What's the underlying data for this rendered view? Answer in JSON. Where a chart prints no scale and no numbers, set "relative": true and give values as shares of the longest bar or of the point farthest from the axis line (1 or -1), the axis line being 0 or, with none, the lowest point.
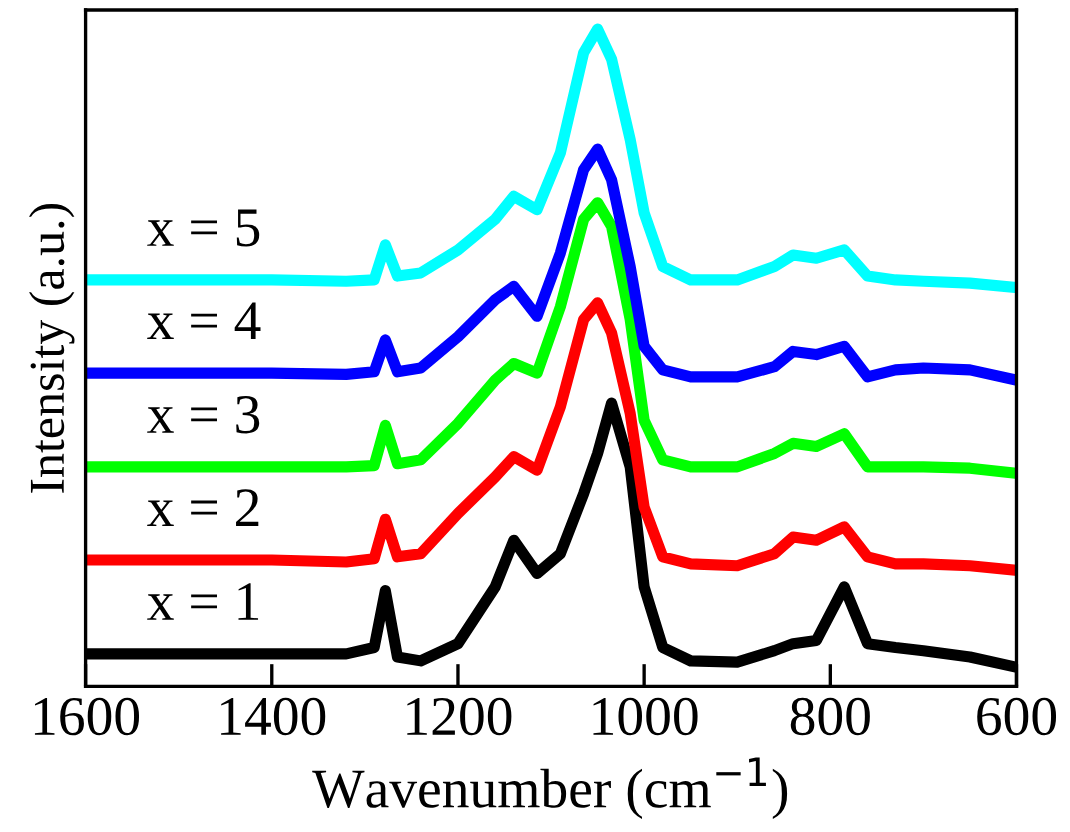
{
  "chart_data": {
    "type": "line",
    "relative": true,
    "xlabel": "Wavenumber (cm$^{−1}$)",
    "ylabel": "Intensity (a.u.)",
    "x": [
      1600,
      1500,
      1400,
      1320,
      1290,
      1278,
      1265,
      1240,
      1200,
      1160,
      1140,
      1115,
      1090,
      1065,
      1050,
      1035,
      1015,
      1000,
      980,
      950,
      900,
      860,
      840,
      815,
      785,
      760,
      730,
      700,
      650,
      600
    ],
    "xlim": [
      1600,
      600
    ],
    "xticks": [
      1600,
      1400,
      1200,
      1000,
      800,
      600
    ],
    "grid": false,
    "legend": false,
    "marker": "none",
    "line_style": "solid",
    "series": [
      {
        "name": "x = 1",
        "color": "#000000",
        "values": [
          0.021,
          0.021,
          0.021,
          0.021,
          0.031,
          0.12,
          0.016,
          0.01,
          0.037,
          0.126,
          0.199,
          0.147,
          0.178,
          0.272,
          0.335,
          0.414,
          0.314,
          0.126,
          0.031,
          0.01,
          0.008,
          0.026,
          0.037,
          0.042,
          0.126,
          0.037,
          0.031,
          0.026,
          0.016,
          0
        ]
      },
      {
        "name": "x = 2",
        "color": "#ff0000",
        "values": [
          0.168,
          0.168,
          0.168,
          0.165,
          0.17,
          0.232,
          0.173,
          0.178,
          0.241,
          0.298,
          0.33,
          0.309,
          0.408,
          0.545,
          0.571,
          0.524,
          0.398,
          0.251,
          0.173,
          0.162,
          0.159,
          0.178,
          0.204,
          0.199,
          0.22,
          0.173,
          0.162,
          0.162,
          0.159,
          0.152
        ]
      },
      {
        "name": "x = 3",
        "color": "#00ff00",
        "values": [
          0.314,
          0.314,
          0.314,
          0.314,
          0.316,
          0.379,
          0.319,
          0.325,
          0.382,
          0.45,
          0.476,
          0.461,
          0.565,
          0.702,
          0.728,
          0.691,
          0.545,
          0.387,
          0.325,
          0.314,
          0.314,
          0.335,
          0.351,
          0.346,
          0.366,
          0.314,
          0.314,
          0.314,
          0.312,
          0.304
        ]
      },
      {
        "name": "x = 4",
        "color": "#0000ff",
        "values": [
          0.461,
          0.461,
          0.461,
          0.459,
          0.463,
          0.513,
          0.463,
          0.469,
          0.518,
          0.576,
          0.597,
          0.55,
          0.649,
          0.78,
          0.812,
          0.764,
          0.628,
          0.503,
          0.466,
          0.455,
          0.455,
          0.471,
          0.495,
          0.49,
          0.503,
          0.455,
          0.466,
          0.469,
          0.466,
          0.45
        ]
      },
      {
        "name": "x = 5",
        "color": "#00ffff",
        "values": [
          0.607,
          0.607,
          0.607,
          0.605,
          0.607,
          0.662,
          0.613,
          0.618,
          0.654,
          0.702,
          0.738,
          0.717,
          0.806,
          0.963,
          1,
          0.953,
          0.827,
          0.712,
          0.628,
          0.607,
          0.607,
          0.628,
          0.646,
          0.641,
          0.654,
          0.613,
          0.607,
          0.605,
          0.602,
          0.595
        ]
      }
    ]
  }
}
